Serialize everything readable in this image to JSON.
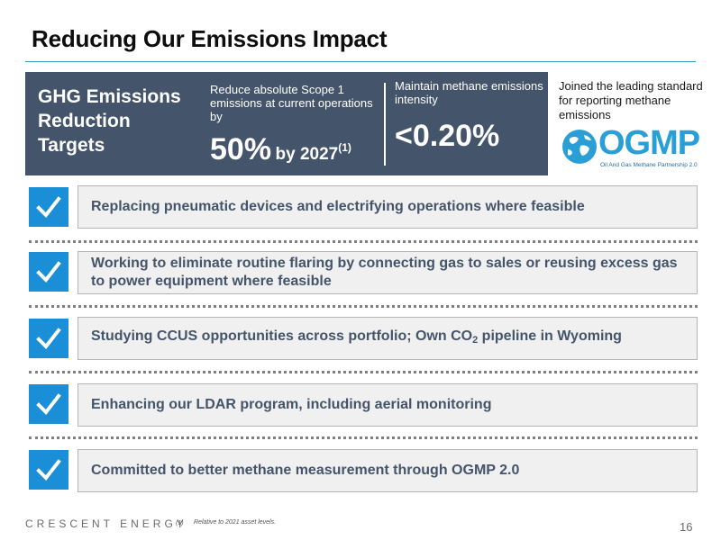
{
  "title": "Reducing Our Emissions Impact",
  "panel": {
    "heading": "GHG Emissions Reduction Targets",
    "scope_desc": "Reduce absolute Scope 1 emissions at current operations by",
    "scope_value": "50%",
    "scope_by": "by 2027",
    "scope_footnote": "(1)",
    "methane_desc": "Maintain methane emissions intensity",
    "methane_value": "<0.20%"
  },
  "ogmp": {
    "note": "Joined the leading standard for reporting methane emissions",
    "logo_text": "OGMP",
    "logo_subtitle": "Oil And Gas Methane Partnership 2.0"
  },
  "actions": [
    {
      "text": "Replacing pneumatic devices and electrifying operations where feasible"
    },
    {
      "text": "Working to eliminate routine flaring by connecting gas to sales or reusing excess gas to power equipment where feasible"
    },
    {
      "text_before": "Studying CCUS opportunities across portfolio; Own CO",
      "subscript": "2",
      "text_after": " pipeline in Wyoming"
    },
    {
      "text": "Enhancing our LDAR program, including aerial monitoring"
    },
    {
      "text": "Committed to better methane measurement through OGMP 2.0"
    }
  ],
  "footer": {
    "brand": "CRESCENT ENERGY",
    "footnote_mark": "(1)",
    "footnote": "Relative to 2021 asset levels.",
    "page": "16"
  },
  "colors": {
    "panel": "#44546a",
    "accent": "#1a8ed6",
    "rule": "#3aa0d8"
  }
}
